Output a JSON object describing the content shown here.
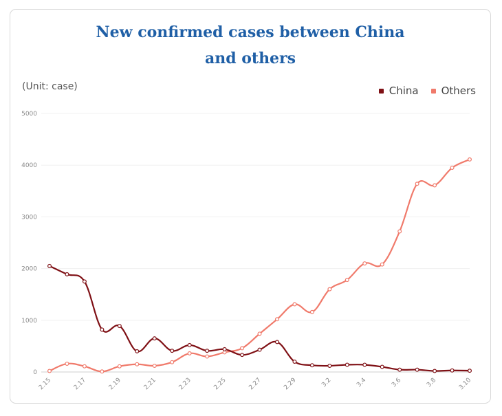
{
  "chart_data": {
    "type": "line",
    "title_line1": "New confirmed cases between China",
    "title_line2": "and others",
    "unit_label": "(Unit: case)",
    "ylim": [
      0,
      5000
    ],
    "yticks": [
      0,
      1000,
      2000,
      3000,
      4000,
      5000
    ],
    "x": [
      "2.15",
      "2.16",
      "2.17",
      "2.18",
      "2.19",
      "2.20",
      "2.21",
      "2.22",
      "2.23",
      "2.24",
      "2.25",
      "2.26",
      "2.27",
      "2.28",
      "2.29",
      "3.1",
      "3.2",
      "3.3",
      "3.4",
      "3.5",
      "3.6",
      "3.7",
      "3.8",
      "3.9",
      "3.10"
    ],
    "xtick_labels": [
      "2.15",
      "2.17",
      "2.19",
      "2.21",
      "2.23",
      "2.25",
      "2.27",
      "2.29",
      "3.2",
      "3.4",
      "3.6",
      "3.8",
      "3.10"
    ],
    "series": [
      {
        "name": "China",
        "color": "#7f1015",
        "values": [
          2050,
          1890,
          1750,
          820,
          890,
          400,
          650,
          410,
          520,
          410,
          440,
          330,
          430,
          580,
          200,
          130,
          120,
          140,
          140,
          100,
          45,
          45,
          20,
          30,
          25
        ]
      },
      {
        "name": "Others",
        "color": "#f07a6b",
        "values": [
          20,
          160,
          110,
          10,
          110,
          150,
          120,
          190,
          360,
          300,
          380,
          460,
          740,
          1020,
          1310,
          1160,
          1600,
          1780,
          2100,
          2080,
          2720,
          3640,
          3610,
          3950,
          4110
        ]
      }
    ]
  }
}
